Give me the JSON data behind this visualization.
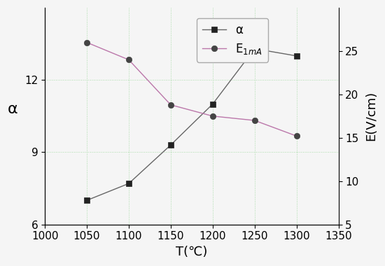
{
  "T": [
    1050,
    1100,
    1150,
    1200,
    1250,
    1300
  ],
  "alpha": [
    7.0,
    7.7,
    9.3,
    11.0,
    13.3,
    13.0
  ],
  "E_1mA": [
    26.0,
    24.0,
    18.8,
    17.5,
    17.0,
    15.2
  ],
  "alpha_line_color": "#666666",
  "alpha_marker_color": "#222222",
  "E_line_color": "#bb77aa",
  "E_marker_color": "#444444",
  "alpha_marker": "s",
  "E_marker": "o",
  "alpha_label": "α",
  "E_label": "E$_{1mA}$",
  "xlabel": "T(℃)",
  "ylabel_left": "α",
  "ylabel_right": "E(V/cm)",
  "xlim": [
    1000,
    1350
  ],
  "ylim_left": [
    6,
    15
  ],
  "ylim_right": [
    5,
    30
  ],
  "yticks_left": [
    6,
    9,
    12
  ],
  "yticks_right": [
    5,
    10,
    15,
    20,
    25
  ],
  "xticks": [
    1000,
    1050,
    1100,
    1150,
    1200,
    1250,
    1300,
    1350
  ],
  "background_color": "#f5f5f5",
  "grid_color": "#aaddaa",
  "line_width": 1.0,
  "marker_size": 6,
  "label_fontsize": 13,
  "tick_fontsize": 11,
  "legend_fontsize": 12
}
